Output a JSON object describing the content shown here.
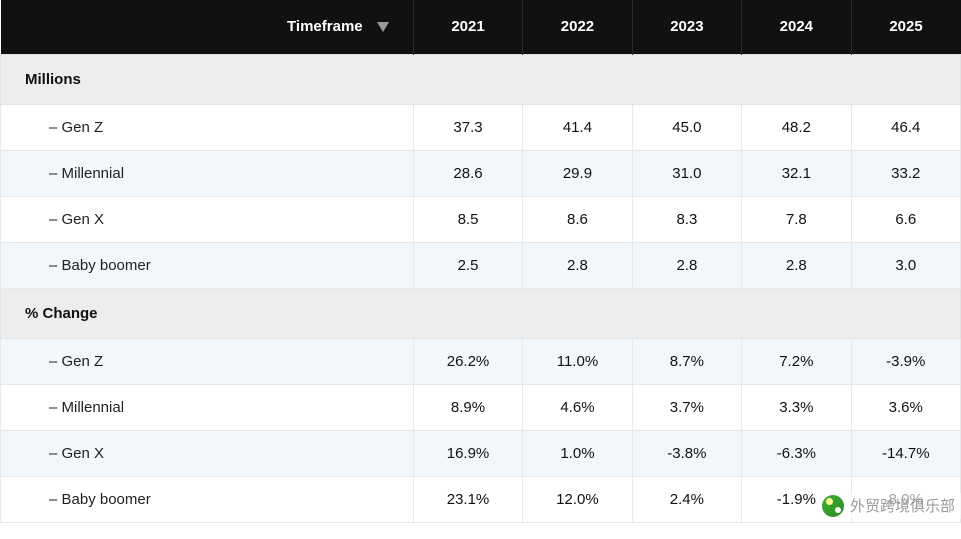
{
  "header": {
    "timeframe_label": "Timeframe",
    "years": [
      "2021",
      "2022",
      "2023",
      "2024",
      "2025"
    ]
  },
  "sections": [
    {
      "title": "Millions",
      "rows": [
        {
          "label": "–  Gen Z",
          "values": [
            "37.3",
            "41.4",
            "45.0",
            "48.2",
            "46.4"
          ],
          "alt": false
        },
        {
          "label": "–  Millennial",
          "values": [
            "28.6",
            "29.9",
            "31.0",
            "32.1",
            "33.2"
          ],
          "alt": true
        },
        {
          "label": "–  Gen X",
          "values": [
            "8.5",
            "8.6",
            "8.3",
            "7.8",
            "6.6"
          ],
          "alt": false
        },
        {
          "label": "–  Baby boomer",
          "values": [
            "2.5",
            "2.8",
            "2.8",
            "2.8",
            "3.0"
          ],
          "alt": true
        }
      ]
    },
    {
      "title": "% Change",
      "rows": [
        {
          "label": "–  Gen Z",
          "values": [
            "26.2%",
            "11.0%",
            "8.7%",
            "7.2%",
            "-3.9%"
          ],
          "alt": true
        },
        {
          "label": "–  Millennial",
          "values": [
            "8.9%",
            "4.6%",
            "3.7%",
            "3.3%",
            "3.6%"
          ],
          "alt": false
        },
        {
          "label": "–  Gen X",
          "values": [
            "16.9%",
            "1.0%",
            "-3.8%",
            "-6.3%",
            "-14.7%"
          ],
          "alt": true
        },
        {
          "label": "–  Baby boomer",
          "values": [
            "23.1%",
            "12.0%",
            "2.4%",
            "-1.9%",
            "8.0%"
          ],
          "alt": false
        }
      ]
    }
  ],
  "watermark": {
    "text": "外贸跨境俱乐部"
  },
  "styling": {
    "header_bg": "#111111",
    "header_text": "#ffffff",
    "section_bg": "#ededed",
    "alt_row_bg": "#f1f7fb",
    "border_color": "#e8e8e8",
    "font_size_body": 15,
    "font_size_header": 15,
    "col_label_width_pct": 43
  }
}
